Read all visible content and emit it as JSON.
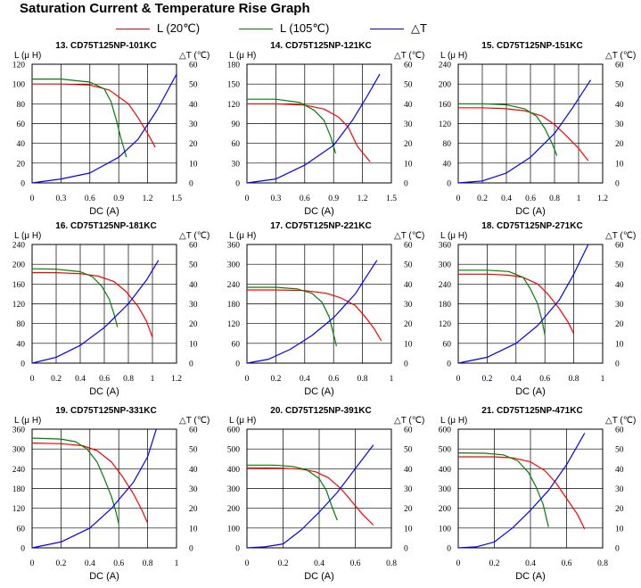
{
  "title": "Saturation Current & Temperature Rise  Graph",
  "legend": [
    {
      "label": "L (20℃)",
      "color": "#ff0000"
    },
    {
      "label": "L (105℃)",
      "color": "#008000"
    },
    {
      "label": "△T",
      "color": "#0000ff"
    }
  ],
  "chart_data": [
    {
      "type": "line",
      "title": "13. CD75T125NP-101KC",
      "xlabel": "DC (A)",
      "ylabel": "L (μ H)",
      "y2label": "△T (℃)",
      "xlim": [
        0,
        1.5
      ],
      "ylim": [
        0,
        120
      ],
      "y2lim": [
        0,
        60
      ],
      "xticks": [
        "0",
        "0.3",
        "0.6",
        "0.9",
        "1.2",
        "1.5"
      ],
      "yticks": [
        "0",
        "20",
        "40",
        "60",
        "80",
        "100",
        "120"
      ],
      "y2ticks": [
        "0",
        "10",
        "20",
        "30",
        "40",
        "50",
        "60"
      ],
      "grid": true,
      "series": [
        {
          "name": "L (20℃)",
          "color": "#ff0000",
          "axis": "left",
          "x": [
            0,
            0.3,
            0.6,
            0.8,
            1.0,
            1.1,
            1.2,
            1.28
          ],
          "y": [
            100,
            100,
            99,
            94,
            80,
            66,
            50,
            36
          ]
        },
        {
          "name": "L (105℃)",
          "color": "#008000",
          "axis": "left",
          "x": [
            0,
            0.3,
            0.6,
            0.75,
            0.82,
            0.88,
            0.92,
            0.98
          ],
          "y": [
            105,
            105,
            102,
            95,
            82,
            62,
            46,
            26
          ]
        },
        {
          "name": "△T",
          "color": "#0000ff",
          "axis": "right",
          "x": [
            0,
            0.3,
            0.6,
            0.9,
            1.1,
            1.3,
            1.5
          ],
          "y": [
            0,
            2,
            5,
            13,
            22,
            37,
            55
          ]
        }
      ]
    },
    {
      "type": "line",
      "title": "14. CD75T125NP-121KC",
      "xlabel": "DC (A)",
      "ylabel": "L (μ H)",
      "y2label": "△T (℃)",
      "xlim": [
        0,
        1.5
      ],
      "ylim": [
        0,
        180
      ],
      "y2lim": [
        0,
        60
      ],
      "xticks": [
        "0",
        "0.3",
        "0.6",
        "0.9",
        "1.2",
        "1.5"
      ],
      "yticks": [
        "0",
        "30",
        "60",
        "90",
        "120",
        "150",
        "180"
      ],
      "y2ticks": [
        "0",
        "10",
        "20",
        "30",
        "40",
        "50",
        "60"
      ],
      "grid": true,
      "series": [
        {
          "name": "L (20℃)",
          "color": "#ff0000",
          "axis": "left",
          "x": [
            0,
            0.3,
            0.6,
            0.8,
            0.95,
            1.05,
            1.15,
            1.28
          ],
          "y": [
            120,
            120,
            118,
            112,
            100,
            85,
            55,
            32
          ]
        },
        {
          "name": "L (105℃)",
          "color": "#008000",
          "axis": "left",
          "x": [
            0,
            0.3,
            0.55,
            0.7,
            0.8,
            0.87,
            0.92
          ],
          "y": [
            127,
            127,
            122,
            110,
            95,
            70,
            45
          ]
        },
        {
          "name": "△T",
          "color": "#0000ff",
          "axis": "right",
          "x": [
            0,
            0.3,
            0.6,
            0.9,
            1.1,
            1.25,
            1.38
          ],
          "y": [
            0,
            2,
            9,
            19,
            32,
            44,
            55
          ]
        }
      ]
    },
    {
      "type": "line",
      "title": "15. CD75T125NP-151KC",
      "xlabel": "DC (A)",
      "ylabel": "L (μ H)",
      "y2label": "△T (℃)",
      "xlim": [
        0,
        1.2
      ],
      "ylim": [
        0,
        240
      ],
      "y2lim": [
        0,
        60
      ],
      "xticks": [
        "0",
        "0.2",
        "0.4",
        "0.6",
        "0.8",
        "1",
        "1.2"
      ],
      "yticks": [
        "0",
        "40",
        "80",
        "120",
        "160",
        "200",
        "240"
      ],
      "y2ticks": [
        "0",
        "10",
        "20",
        "30",
        "40",
        "50",
        "60"
      ],
      "grid": true,
      "series": [
        {
          "name": "L (20℃)",
          "color": "#ff0000",
          "axis": "left",
          "x": [
            0,
            0.2,
            0.4,
            0.55,
            0.7,
            0.8,
            0.9,
            1.0,
            1.08
          ],
          "y": [
            152,
            152,
            150,
            146,
            135,
            118,
            95,
            70,
            45
          ]
        },
        {
          "name": "L (105℃)",
          "color": "#008000",
          "axis": "left",
          "x": [
            0,
            0.2,
            0.4,
            0.55,
            0.65,
            0.72,
            0.78,
            0.82
          ],
          "y": [
            160,
            160,
            158,
            150,
            135,
            110,
            80,
            55
          ]
        },
        {
          "name": "△T",
          "color": "#0000ff",
          "axis": "right",
          "x": [
            0,
            0.2,
            0.4,
            0.6,
            0.8,
            0.95,
            1.1
          ],
          "y": [
            0,
            1,
            5,
            13,
            25,
            38,
            52
          ]
        }
      ]
    },
    {
      "type": "line",
      "title": "16. CD75T125NP-181KC",
      "xlabel": "DC (A)",
      "ylabel": "L (μ H)",
      "y2label": "△T (℃)",
      "xlim": [
        0,
        1.2
      ],
      "ylim": [
        0,
        240
      ],
      "y2lim": [
        0,
        60
      ],
      "xticks": [
        "0",
        "0.2",
        "0.4",
        "0.6",
        "0.8",
        "1",
        "1.2"
      ],
      "yticks": [
        "0",
        "40",
        "80",
        "120",
        "160",
        "200",
        "240"
      ],
      "y2ticks": [
        "0",
        "10",
        "20",
        "30",
        "40",
        "50",
        "60"
      ],
      "grid": true,
      "series": [
        {
          "name": "L (20℃)",
          "color": "#ff0000",
          "axis": "left",
          "x": [
            0,
            0.2,
            0.4,
            0.55,
            0.68,
            0.78,
            0.88,
            0.95,
            1.0
          ],
          "y": [
            183,
            183,
            181,
            176,
            165,
            145,
            115,
            85,
            52
          ]
        },
        {
          "name": "L (105℃)",
          "color": "#008000",
          "axis": "left",
          "x": [
            0,
            0.2,
            0.4,
            0.5,
            0.58,
            0.64,
            0.68,
            0.71
          ],
          "y": [
            191,
            190,
            185,
            175,
            155,
            130,
            100,
            73
          ]
        },
        {
          "name": "△T",
          "color": "#0000ff",
          "axis": "right",
          "x": [
            0,
            0.2,
            0.4,
            0.6,
            0.8,
            0.95,
            1.05
          ],
          "y": [
            0,
            3,
            9,
            18,
            30,
            42,
            52
          ]
        }
      ]
    },
    {
      "type": "line",
      "title": "17. CD75T125NP-221KC",
      "xlabel": "DC (A)",
      "ylabel": "L (μ H)",
      "y2label": "△T (℃)",
      "xlim": [
        0,
        1.0
      ],
      "ylim": [
        0,
        360
      ],
      "y2lim": [
        0,
        60
      ],
      "xticks": [
        "0",
        "0.2",
        "0.4",
        "0.6",
        "0.8",
        "1"
      ],
      "yticks": [
        "0",
        "60",
        "120",
        "180",
        "240",
        "300",
        "360"
      ],
      "y2ticks": [
        "0",
        "10",
        "20",
        "30",
        "40",
        "50",
        "60"
      ],
      "grid": true,
      "series": [
        {
          "name": "L (20℃)",
          "color": "#ff0000",
          "axis": "left",
          "x": [
            0,
            0.2,
            0.4,
            0.55,
            0.65,
            0.75,
            0.82,
            0.88,
            0.93
          ],
          "y": [
            222,
            222,
            220,
            212,
            198,
            175,
            140,
            105,
            68
          ]
        },
        {
          "name": "L (105℃)",
          "color": "#008000",
          "axis": "left",
          "x": [
            0,
            0.2,
            0.35,
            0.45,
            0.52,
            0.57,
            0.62
          ],
          "y": [
            230,
            230,
            225,
            212,
            185,
            140,
            52
          ]
        },
        {
          "name": "△T",
          "color": "#0000ff",
          "axis": "right",
          "x": [
            0,
            0.15,
            0.3,
            0.45,
            0.6,
            0.75,
            0.9
          ],
          "y": [
            0,
            2,
            7,
            14,
            23,
            35,
            52
          ]
        }
      ]
    },
    {
      "type": "line",
      "title": "18. CD75T125NP-271KC",
      "xlabel": "DC (A)",
      "ylabel": "L (μ H)",
      "y2label": "△T (℃)",
      "xlim": [
        0,
        1.0
      ],
      "ylim": [
        0,
        360
      ],
      "y2lim": [
        0,
        60
      ],
      "xticks": [
        "0",
        "0.2",
        "0.4",
        "0.6",
        "0.8",
        "1"
      ],
      "yticks": [
        "0",
        "60",
        "120",
        "180",
        "240",
        "300",
        "360"
      ],
      "y2ticks": [
        "0",
        "10",
        "20",
        "30",
        "40",
        "50",
        "60"
      ],
      "grid": true,
      "series": [
        {
          "name": "L (20℃)",
          "color": "#ff0000",
          "axis": "left",
          "x": [
            0,
            0.2,
            0.35,
            0.45,
            0.55,
            0.62,
            0.7,
            0.76,
            0.8
          ],
          "y": [
            270,
            270,
            267,
            260,
            240,
            210,
            165,
            125,
            90
          ]
        },
        {
          "name": "L (105℃)",
          "color": "#008000",
          "axis": "left",
          "x": [
            0,
            0.2,
            0.35,
            0.45,
            0.5,
            0.55,
            0.58,
            0.6
          ],
          "y": [
            282,
            282,
            278,
            260,
            225,
            180,
            130,
            85
          ]
        },
        {
          "name": "△T",
          "color": "#0000ff",
          "axis": "right",
          "x": [
            0,
            0.2,
            0.4,
            0.55,
            0.7,
            0.8,
            0.9
          ],
          "y": [
            0,
            3,
            10,
            19,
            32,
            45,
            60
          ]
        }
      ]
    },
    {
      "type": "line",
      "title": "19. CD75T125NP-331KC",
      "xlabel": "DC (A)",
      "ylabel": "L (μ H)",
      "y2label": "△T (℃)",
      "xlim": [
        0,
        1.0
      ],
      "ylim": [
        0,
        360
      ],
      "y2lim": [
        0,
        60
      ],
      "xticks": [
        "0",
        "0.2",
        "0.4",
        "0.6",
        "0.8",
        "1"
      ],
      "yticks": [
        "0",
        "60",
        "120",
        "180",
        "240",
        "300",
        "360"
      ],
      "y2ticks": [
        "0",
        "10",
        "20",
        "30",
        "40",
        "50",
        "60"
      ],
      "grid": true,
      "series": [
        {
          "name": "L (20℃)",
          "color": "#ff0000",
          "axis": "left",
          "x": [
            0,
            0.2,
            0.35,
            0.45,
            0.55,
            0.62,
            0.7,
            0.76,
            0.8
          ],
          "y": [
            318,
            316,
            310,
            295,
            260,
            220,
            165,
            115,
            75
          ]
        },
        {
          "name": "L (105℃)",
          "color": "#008000",
          "axis": "left",
          "x": [
            0,
            0.2,
            0.3,
            0.38,
            0.45,
            0.5,
            0.55,
            0.58,
            0.6
          ],
          "y": [
            333,
            330,
            322,
            300,
            260,
            210,
            155,
            110,
            72
          ]
        },
        {
          "name": "△T",
          "color": "#0000ff",
          "axis": "right",
          "x": [
            0,
            0.2,
            0.4,
            0.55,
            0.7,
            0.8,
            0.86
          ],
          "y": [
            0,
            3,
            10,
            20,
            33,
            46,
            60
          ]
        }
      ]
    },
    {
      "type": "line",
      "title": "20. CD75T125NP-391KC",
      "xlabel": "DC (A)",
      "ylabel": "L (μ H)",
      "y2label": "△T (℃)",
      "xlim": [
        0,
        0.8
      ],
      "ylim": [
        0,
        600
      ],
      "y2lim": [
        0,
        60
      ],
      "xticks": [
        "0",
        "0.2",
        "0.4",
        "0.6",
        "0.8"
      ],
      "yticks": [
        "0",
        "100",
        "200",
        "300",
        "400",
        "500",
        "600"
      ],
      "y2ticks": [
        "0",
        "10",
        "20",
        "30",
        "40",
        "50",
        "60"
      ],
      "grid": true,
      "series": [
        {
          "name": "L (20℃)",
          "color": "#ff0000",
          "axis": "left",
          "x": [
            0,
            0.2,
            0.3,
            0.38,
            0.45,
            0.52,
            0.58,
            0.64,
            0.7
          ],
          "y": [
            405,
            403,
            398,
            385,
            355,
            300,
            235,
            170,
            115
          ]
        },
        {
          "name": "L (105℃)",
          "color": "#008000",
          "axis": "left",
          "x": [
            0,
            0.15,
            0.25,
            0.33,
            0.4,
            0.44,
            0.47,
            0.5
          ],
          "y": [
            418,
            418,
            412,
            395,
            350,
            290,
            210,
            140
          ]
        },
        {
          "name": "△T",
          "color": "#0000ff",
          "axis": "right",
          "x": [
            0,
            0.1,
            0.2,
            0.3,
            0.4,
            0.5,
            0.6,
            0.7
          ],
          "y": [
            0,
            0.5,
            2,
            9,
            18,
            28,
            40,
            52
          ]
        }
      ]
    },
    {
      "type": "line",
      "title": "21. CD75T125NP-471KC",
      "xlabel": "DC (A)",
      "ylabel": "L (μ H)",
      "y2label": "△T (℃)",
      "xlim": [
        0,
        0.8
      ],
      "ylim": [
        0,
        600
      ],
      "y2lim": [
        0,
        60
      ],
      "xticks": [
        "0",
        "0.2",
        "0.4",
        "0.6",
        "0.8"
      ],
      "yticks": [
        "0",
        "100",
        "200",
        "300",
        "400",
        "500",
        "600"
      ],
      "y2ticks": [
        "0",
        "10",
        "20",
        "30",
        "40",
        "50",
        "60"
      ],
      "grid": true,
      "series": [
        {
          "name": "L (20℃)",
          "color": "#ff0000",
          "axis": "left",
          "x": [
            0,
            0.2,
            0.3,
            0.4,
            0.48,
            0.54,
            0.6,
            0.66,
            0.7
          ],
          "y": [
            460,
            460,
            455,
            435,
            390,
            330,
            250,
            170,
            95
          ]
        },
        {
          "name": "L (105℃)",
          "color": "#008000",
          "axis": "left",
          "x": [
            0,
            0.15,
            0.25,
            0.33,
            0.39,
            0.43,
            0.47,
            0.5
          ],
          "y": [
            480,
            478,
            470,
            440,
            380,
            310,
            220,
            105
          ]
        },
        {
          "name": "△T",
          "color": "#0000ff",
          "axis": "right",
          "x": [
            0,
            0.1,
            0.2,
            0.3,
            0.4,
            0.5,
            0.6,
            0.7
          ],
          "y": [
            0,
            0.5,
            3,
            10,
            19,
            29,
            42,
            58
          ]
        }
      ]
    }
  ]
}
